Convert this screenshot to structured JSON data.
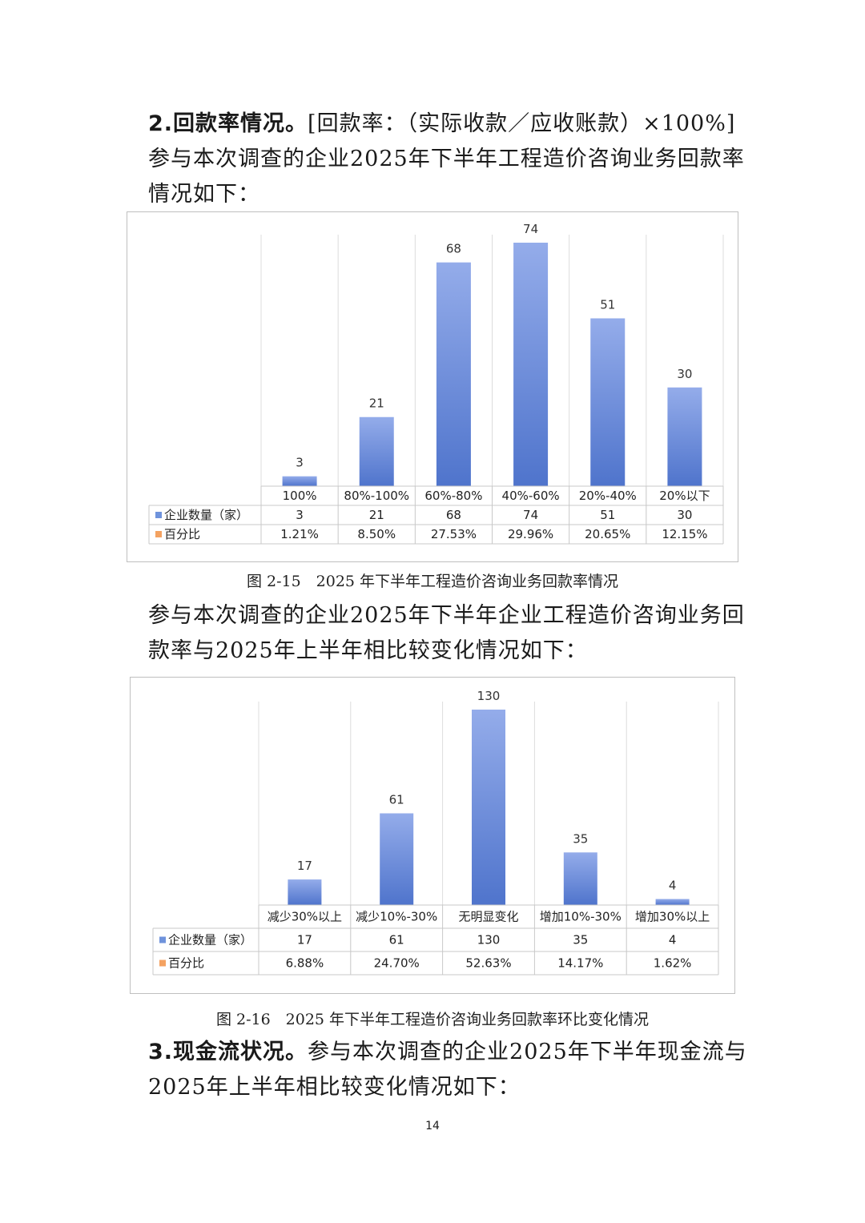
{
  "section2": {
    "heading": "2.回款率情况。",
    "formula": "[回款率：（实际收款／应收账款）×100%]",
    "intro": "参与本次调查的企业2025年下半年工程造价咨询业务回款率情况如下："
  },
  "fig1": {
    "caption": "图 2-15　2025 年下半年工程造价咨询业务回款率情况"
  },
  "mid": {
    "intro": "参与本次调查的企业2025年下半年企业工程造价咨询业务回款率与2025年上半年相比较变化情况如下："
  },
  "fig2": {
    "caption": "图 2-16　2025 年下半年工程造价咨询业务回款率环比变化情况"
  },
  "section3": {
    "heading": "3.现金流状况。",
    "intro": "参与本次调查的企业2025年下半年现金流与2025年上半年相比较变化情况如下："
  },
  "page_number": "14",
  "chart_data": [
    {
      "type": "bar",
      "categories": [
        "100%",
        "80%-100%",
        "60%-80%",
        "40%-60%",
        "20%-40%",
        "20%以下"
      ],
      "series": [
        {
          "name": "企业数量（家）",
          "values": [
            3,
            21,
            68,
            74,
            51,
            30
          ],
          "color": "#6f93dc"
        },
        {
          "name": "百分比",
          "values": [
            "1.21%",
            "8.50%",
            "27.53%",
            "29.96%",
            "20.65%",
            "12.15%"
          ],
          "color": "#f4a261"
        }
      ],
      "ymax": 74
    },
    {
      "type": "bar",
      "categories": [
        "减少30%以上",
        "减少10%-30%",
        "无明显变化",
        "增加10%-30%",
        "增加30%以上"
      ],
      "series": [
        {
          "name": "企业数量（家）",
          "values": [
            17,
            61,
            130,
            35,
            4
          ],
          "color": "#6f93dc"
        },
        {
          "name": "百分比",
          "values": [
            "6.88%",
            "24.70%",
            "52.63%",
            "14.17%",
            "1.62%"
          ],
          "color": "#f4a261"
        }
      ],
      "ymax": 130
    }
  ]
}
